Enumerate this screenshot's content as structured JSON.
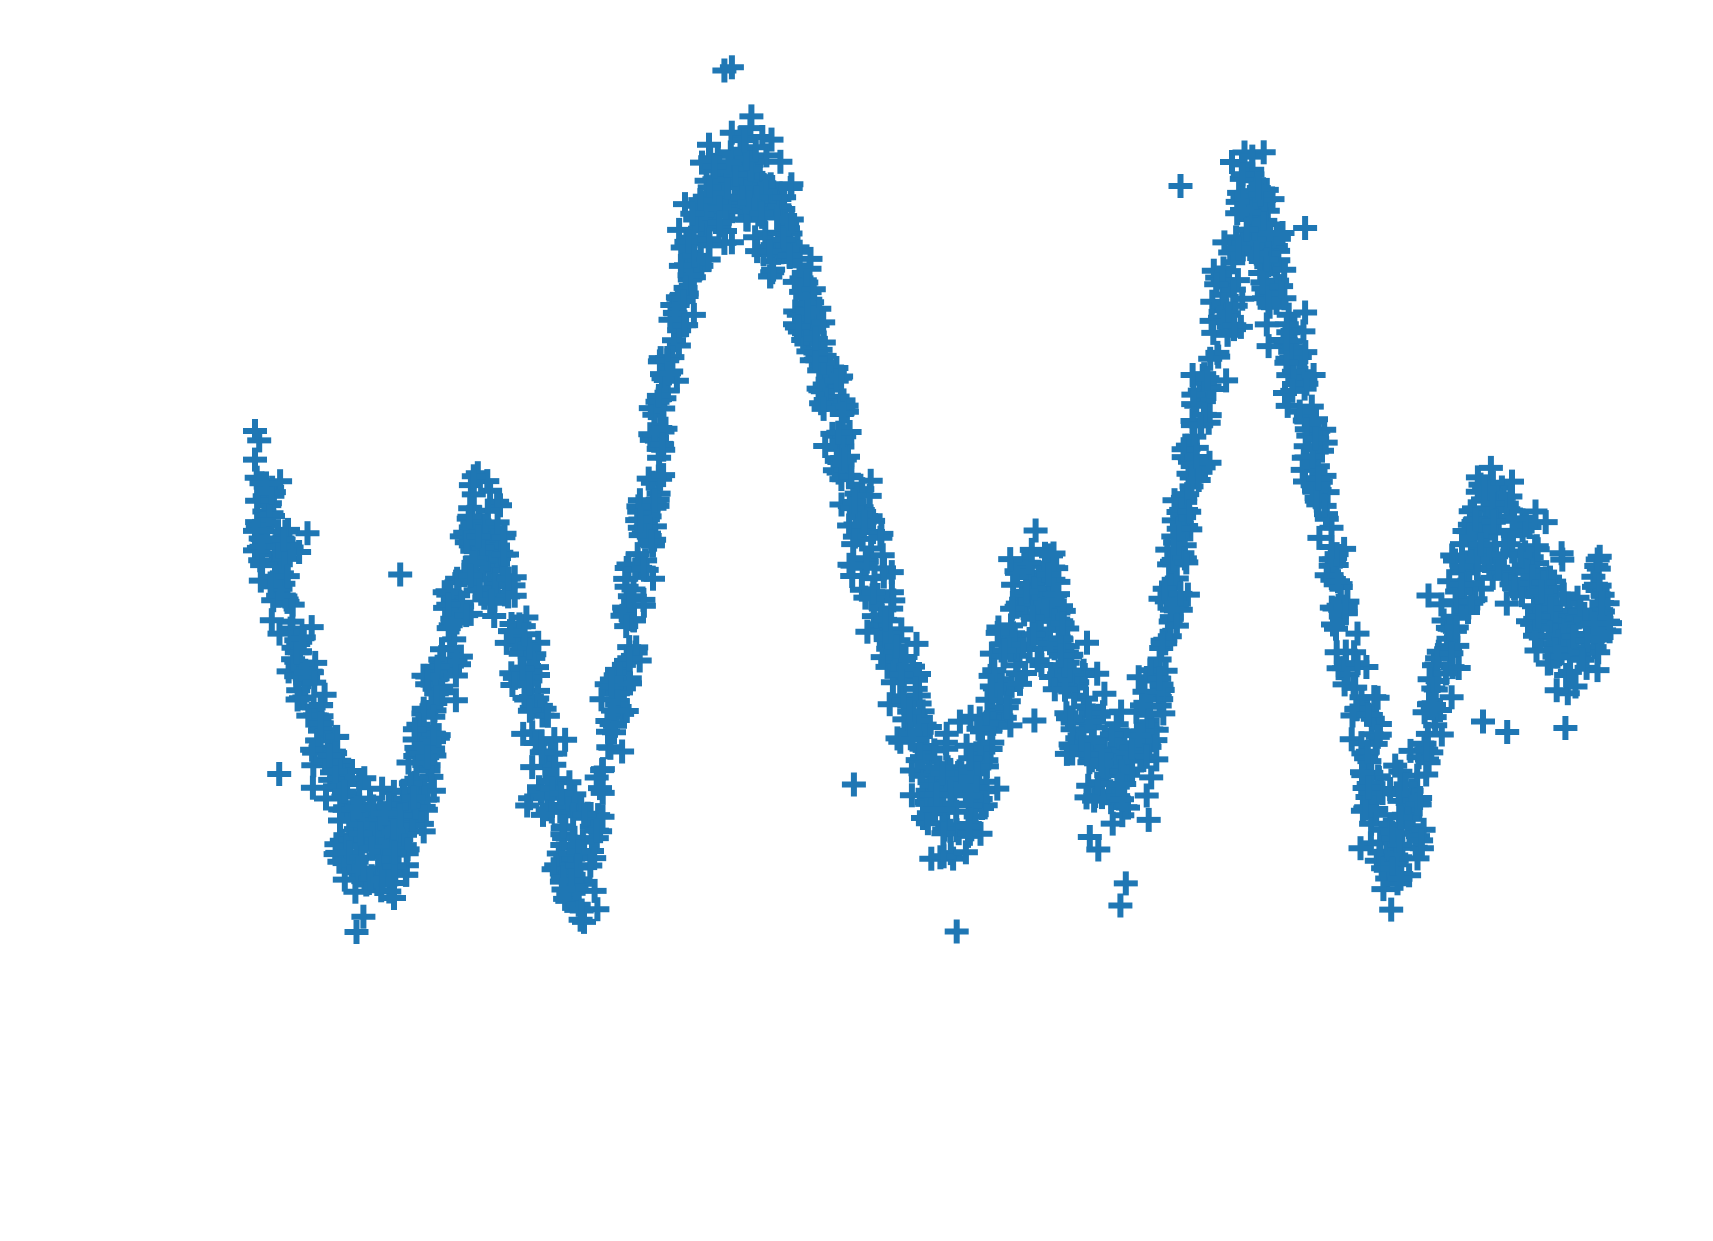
{
  "chart_data": {
    "type": "scatter",
    "marker": "plus",
    "axes_visible": false,
    "grid": false,
    "legend": "none",
    "xlim": [
      0,
      100
    ],
    "ylim": [
      0,
      100
    ],
    "colors": {
      "series": "#1f77b4",
      "background": "#ffffff"
    },
    "series": [
      {
        "trend": [
          [
            0,
            58
          ],
          [
            2,
            52
          ],
          [
            4,
            43
          ],
          [
            6,
            33
          ],
          [
            8,
            26
          ],
          [
            10,
            24
          ],
          [
            12,
            27
          ],
          [
            14,
            33
          ],
          [
            16,
            45
          ],
          [
            18,
            54
          ],
          [
            20,
            53
          ],
          [
            22,
            43
          ],
          [
            24,
            33
          ],
          [
            26,
            24
          ],
          [
            28,
            26
          ],
          [
            30,
            40
          ],
          [
            32,
            52
          ],
          [
            34,
            68
          ],
          [
            36,
            82
          ],
          [
            38,
            88
          ],
          [
            40,
            89
          ],
          [
            42,
            87
          ],
          [
            44,
            82
          ],
          [
            46,
            75
          ],
          [
            48,
            66
          ],
          [
            50,
            56
          ],
          [
            52,
            48
          ],
          [
            54,
            39
          ],
          [
            56,
            31
          ],
          [
            58,
            29
          ],
          [
            60,
            33
          ],
          [
            62,
            42
          ],
          [
            64,
            50
          ],
          [
            66,
            47
          ],
          [
            68,
            38
          ],
          [
            70,
            33
          ],
          [
            72,
            32
          ],
          [
            74,
            38
          ],
          [
            76,
            52
          ],
          [
            78,
            65
          ],
          [
            80,
            78
          ],
          [
            82,
            85
          ],
          [
            84,
            81
          ],
          [
            86,
            71
          ],
          [
            88,
            59
          ],
          [
            90,
            45
          ],
          [
            92,
            33
          ],
          [
            94,
            25
          ],
          [
            96,
            29
          ],
          [
            98,
            40
          ],
          [
            100,
            52
          ],
          [
            102,
            56
          ],
          [
            104,
            54
          ],
          [
            106,
            50
          ],
          [
            108,
            45
          ],
          [
            110,
            46
          ],
          [
            112,
            48
          ]
        ],
        "count": 2200,
        "jitter_x": 0.9,
        "jitter_y": 3.2,
        "outliers": [
          [
            37.5,
            81
          ],
          [
            38.8,
            99
          ],
          [
            76.5,
            88
          ],
          [
            86.8,
            84
          ],
          [
            97,
            49
          ],
          [
            101.5,
            37
          ],
          [
            103.5,
            36
          ],
          [
            2,
            32
          ],
          [
            9,
            23
          ],
          [
            22.5,
            29
          ],
          [
            27,
            19
          ],
          [
            12,
            51
          ],
          [
            29.5,
            41
          ],
          [
            49.5,
            31
          ],
          [
            58,
            17
          ],
          [
            25.5,
            21
          ],
          [
            66,
            53
          ],
          [
            77.5,
            70
          ],
          [
            87.5,
            70
          ],
          [
            69,
            26
          ],
          [
            70,
            33
          ],
          [
            78,
            60
          ]
        ]
      }
    ]
  }
}
